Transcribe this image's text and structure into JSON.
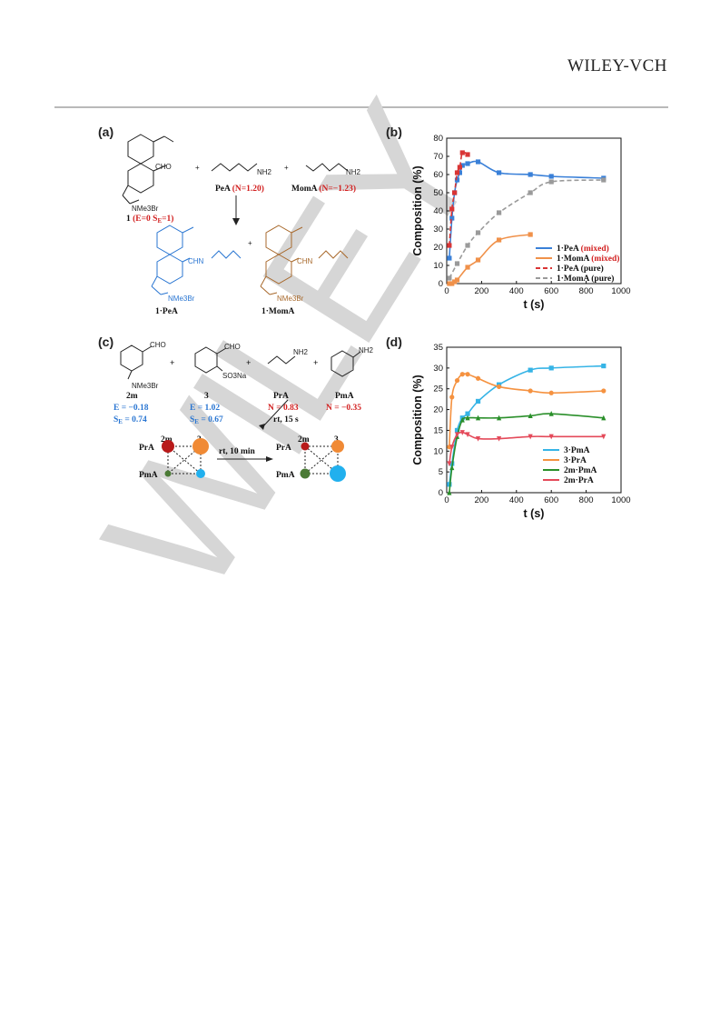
{
  "header": {
    "publisher": "WILEY-VCH"
  },
  "watermark": "WILEY",
  "panels": {
    "a": {
      "label": "(a)",
      "reagents": {
        "aldehyde_label": "1",
        "aldehyde_param_open": " (",
        "aldehyde_params": "E=0 S",
        "aldehyde_params_sub": "E",
        "aldehyde_params_end": "=1)",
        "pea_name": "PeA",
        "pea_param": "(N=1.20)",
        "moma_name": "MomA",
        "moma_param": "(N=−1.23)",
        "plus": "+",
        "cho": "CHO",
        "nh2": "NH2",
        "nme3br": "NMe3Br"
      },
      "products": {
        "pea_product": "1·PeA",
        "moma_product": "1·MomA",
        "chn": "CHN",
        "nme3br": "NMe3Br"
      }
    },
    "b": {
      "label": "(b)"
    },
    "c": {
      "label": "(c)",
      "reagents": [
        {
          "name": "2m",
          "line1": "E = −0.18",
          "line2_pre": "S",
          "line2_sub": "E",
          "line2_post": " = 0.74",
          "color": "#2a76d2"
        },
        {
          "name": "3",
          "line1": "E = 1.02",
          "line2_pre": "S",
          "line2_sub": "E",
          "line2_post": " = 0.67",
          "color": "#2a76d2"
        },
        {
          "name": "PrA",
          "line1": "N = 0.83",
          "color": "#d22020"
        },
        {
          "name": "PmA",
          "line1": "N = −0.35",
          "color": "#d22020"
        }
      ],
      "chem_labels": {
        "cho": "CHO",
        "nme3br": "NMe3Br",
        "so3na": "SO3Na",
        "nh2": "NH2"
      },
      "arrow1": "rt, 15 s",
      "arrow2": "rt, 10 min",
      "grid_cols": [
        "2m",
        "3"
      ],
      "grid_rows": [
        "PrA",
        "PmA"
      ]
    },
    "d": {
      "label": "(d)"
    }
  },
  "chart_data": [
    {
      "panel": "b",
      "type": "line",
      "xlabel": "t (s)",
      "ylabel": "Composition (%)",
      "xlim": [
        0,
        1000
      ],
      "ylim": [
        0,
        80
      ],
      "xticks": [
        0,
        200,
        400,
        600,
        800,
        1000
      ],
      "yticks": [
        0,
        10,
        20,
        30,
        40,
        50,
        60,
        70,
        80
      ],
      "legend_position": "right-middle",
      "series": [
        {
          "name": "1·PeA (mixed)",
          "name_main": "1·PeA ",
          "name_tag": "(mixed)",
          "color": "#3a80d8",
          "dash": "solid",
          "x": [
            15,
            30,
            45,
            60,
            75,
            90,
            120,
            180,
            300,
            480,
            600,
            900
          ],
          "y": [
            14,
            36,
            50,
            57,
            61,
            65,
            66,
            67,
            61,
            60,
            59,
            58
          ]
        },
        {
          "name": "1·MomA (mixed)",
          "name_main": "1·MomA ",
          "name_tag": "(mixed)",
          "color": "#f0914a",
          "dash": "solid",
          "x": [
            15,
            30,
            45,
            60,
            120,
            180,
            300,
            480
          ],
          "y": [
            0,
            0,
            1,
            2,
            9,
            13,
            24,
            27
          ]
        },
        {
          "name": "1·PeA (pure)",
          "name_main": "1·PeA (pure)",
          "name_tag": "",
          "color": "#d93535",
          "dash": "dash",
          "x": [
            15,
            30,
            45,
            60,
            75,
            90,
            120
          ],
          "y": [
            21,
            41,
            50,
            61,
            64,
            72,
            71
          ]
        },
        {
          "name": "1·MomA (pure)",
          "name_main": "1·MomA (pure)",
          "name_tag": "",
          "color": "#9a9a9a",
          "dash": "dash",
          "x": [
            15,
            60,
            120,
            180,
            300,
            480,
            600,
            900
          ],
          "y": [
            3,
            11,
            21,
            28,
            39,
            50,
            56,
            57
          ]
        }
      ]
    },
    {
      "panel": "d",
      "type": "line",
      "xlabel": "t (s)",
      "ylabel": "Composition (%)",
      "xlim": [
        0,
        1000
      ],
      "ylim": [
        0,
        35
      ],
      "xticks": [
        0,
        200,
        400,
        600,
        800,
        1000
      ],
      "yticks": [
        0,
        5,
        10,
        15,
        20,
        25,
        30,
        35
      ],
      "legend_position": "bottom-right",
      "series": [
        {
          "name": "3·PmA",
          "color": "#36b4e6",
          "marker": "square",
          "x": [
            15,
            30,
            60,
            90,
            120,
            180,
            300,
            480,
            600,
            900
          ],
          "y": [
            2,
            7,
            15,
            18,
            19,
            22,
            26,
            29.5,
            30,
            30.5
          ]
        },
        {
          "name": "3·PrA",
          "color": "#f59240",
          "marker": "circle",
          "x": [
            15,
            30,
            60,
            90,
            120,
            180,
            300,
            480,
            600,
            900
          ],
          "y": [
            11,
            23,
            27,
            28.5,
            28.5,
            27.5,
            25.5,
            24.5,
            24,
            24.5
          ]
        },
        {
          "name": "2m·PmA",
          "color": "#2a8f2a",
          "marker": "triangle-up",
          "x": [
            15,
            30,
            60,
            90,
            120,
            180,
            300,
            480,
            600,
            900
          ],
          "y": [
            0,
            6,
            13.5,
            17.5,
            18,
            18,
            18,
            18.5,
            19,
            18
          ]
        },
        {
          "name": "2m·PrA",
          "color": "#e44a5a",
          "marker": "triangle-down",
          "x": [
            15,
            30,
            60,
            90,
            120,
            180,
            300,
            480,
            600,
            900
          ],
          "y": [
            7,
            11,
            14,
            14.5,
            14,
            13,
            13,
            13.5,
            13.5,
            13.5
          ]
        }
      ]
    }
  ]
}
